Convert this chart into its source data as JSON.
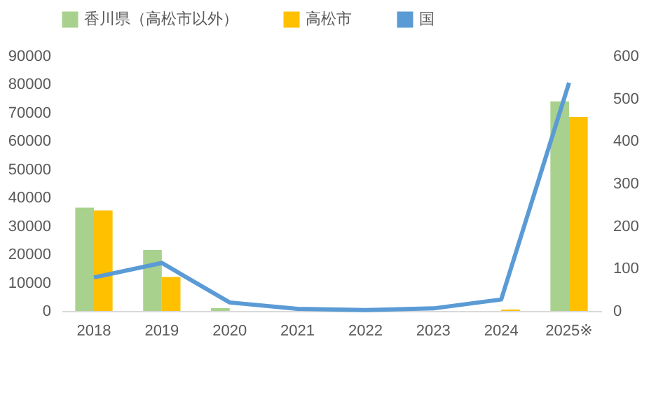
{
  "chart_data": {
    "type": "bar",
    "categories": [
      "2018",
      "2019",
      "2020",
      "2021",
      "2022",
      "2023",
      "2024",
      "2025※"
    ],
    "series": [
      {
        "name": "香川県（高松市以外）",
        "color": "#a9d18e",
        "values": [
          36500,
          21500,
          1000,
          0,
          0,
          0,
          0,
          74000
        ]
      },
      {
        "name": "高松市",
        "color": "#ffc000",
        "values": [
          35500,
          12000,
          0,
          0,
          0,
          0,
          500,
          68500
        ]
      },
      {
        "name": "国",
        "type": "line",
        "axis": "y2",
        "color": "#5b9bd5",
        "values": [
          79,
          113,
          20,
          5,
          2,
          6,
          27,
          537
        ]
      }
    ],
    "ylim": [
      0,
      90000
    ],
    "yticks": [
      0,
      10000,
      20000,
      30000,
      40000,
      50000,
      60000,
      70000,
      80000,
      90000
    ],
    "y2lim": [
      0,
      600
    ],
    "y2ticks": [
      0,
      100,
      200,
      300,
      400,
      500,
      600
    ],
    "grid": false,
    "legend": "top"
  }
}
